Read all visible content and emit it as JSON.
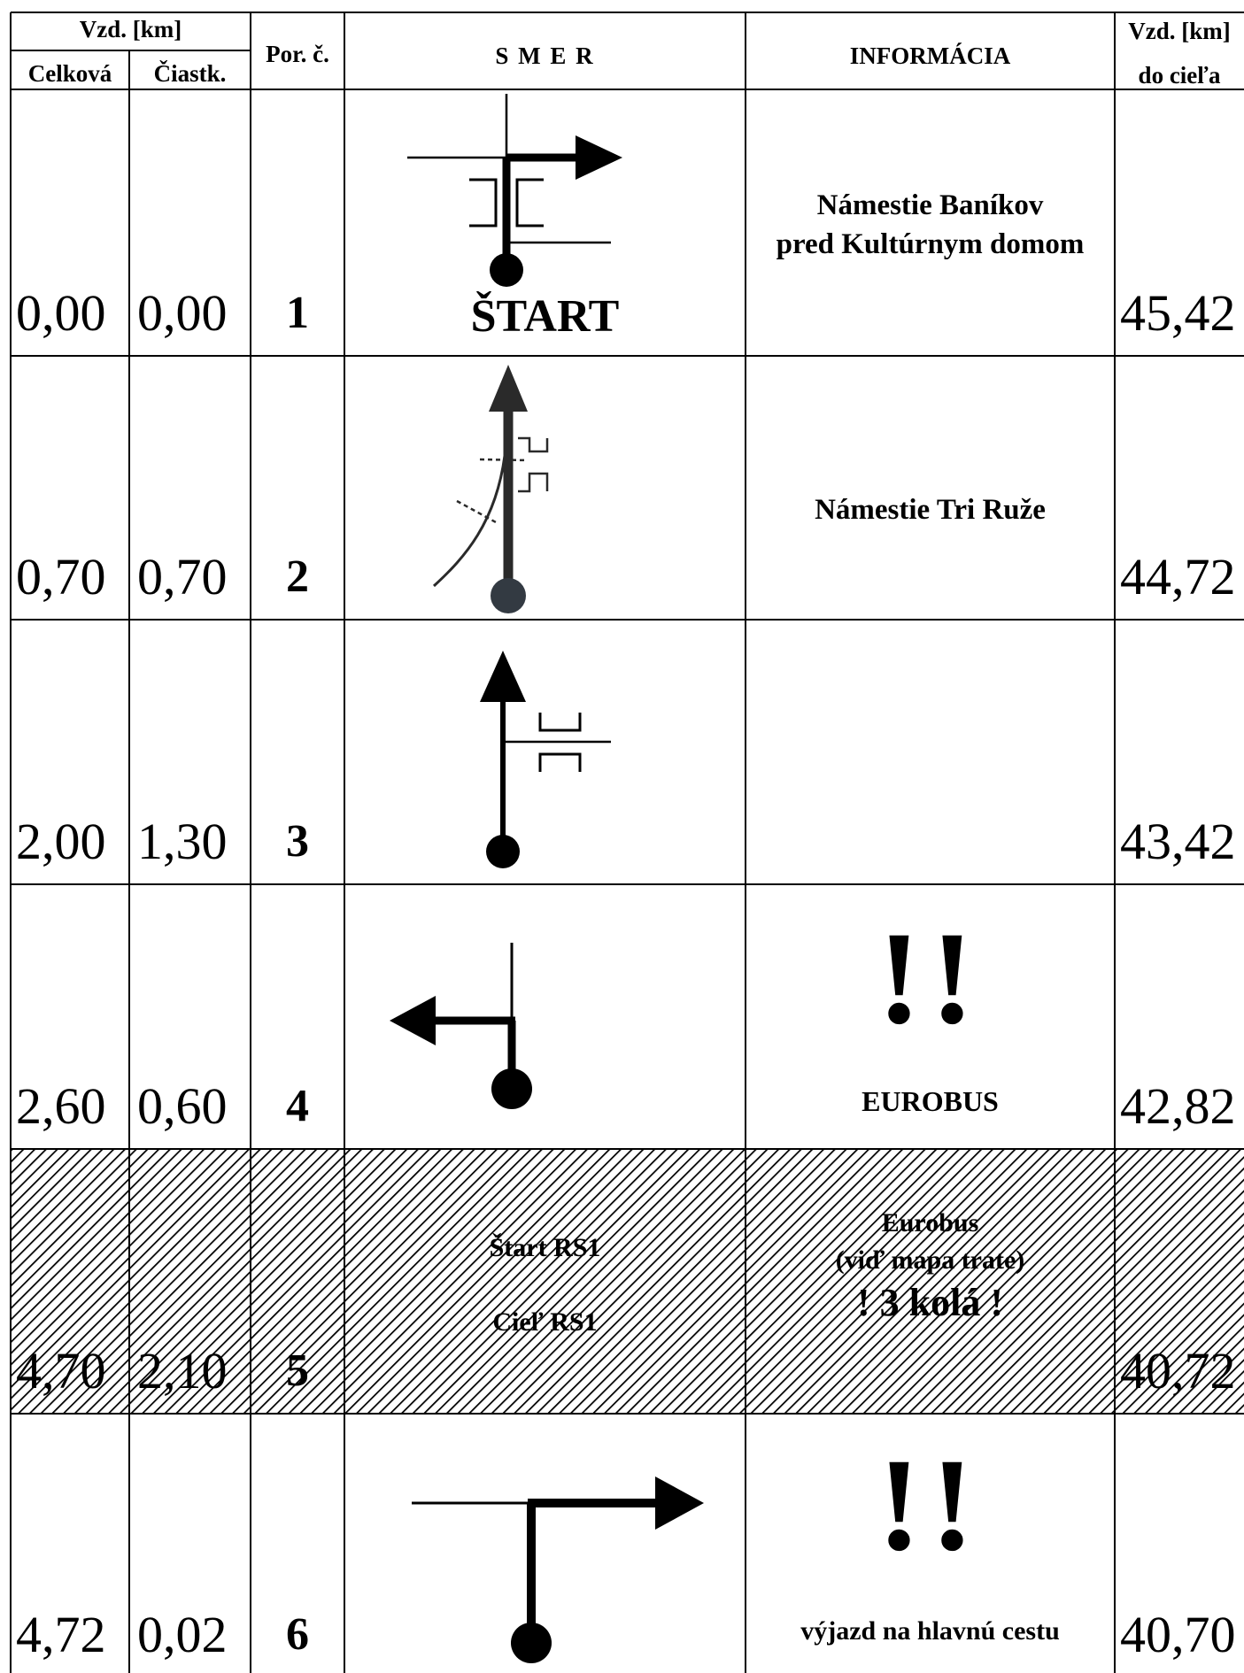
{
  "header": {
    "vzd_km": "Vzd. [km]",
    "celkova": "Celková",
    "ciastk": "Čiastk.",
    "por": "Por. č.",
    "smer": "S M E R",
    "informacia": "INFORMÁCIA",
    "vzd_km_right": "Vzd. [km]",
    "do_ciela": "do cieľa"
  },
  "rows": [
    {
      "celkova": "0,00",
      "ciastk": "0,00",
      "por": "1",
      "smer_text": "ŠTART",
      "info_lines": [
        "Námestie Baníkov",
        "pred Kultúrnym domom"
      ],
      "do_ciela": "45,42"
    },
    {
      "celkova": "0,70",
      "ciastk": "0,70",
      "por": "2",
      "info_lines": [
        "Námestie Tri Ruže"
      ],
      "do_ciela": "44,72"
    },
    {
      "celkova": "2,00",
      "ciastk": "1,30",
      "por": "3",
      "do_ciela": "43,42"
    },
    {
      "celkova": "2,60",
      "ciastk": "0,60",
      "por": "4",
      "info_mark": "!!",
      "info_lines": [
        "EUROBUS"
      ],
      "do_ciela": "42,82"
    },
    {
      "celkova": "4,70",
      "ciastk": "2,10",
      "por": "5",
      "smer_lines": [
        "Štart RS1",
        "Cieľ RS1"
      ],
      "info_lines": [
        "Eurobus",
        "(viď mapa trate)",
        "! 3 kolá !"
      ],
      "do_ciela": "40,72"
    },
    {
      "celkova": "4,72",
      "ciastk": "0,02",
      "por": "6",
      "info_mark": "!!",
      "info_lines": [
        "výjazd na hlavnú cestu"
      ],
      "do_ciela": "40,70"
    }
  ]
}
